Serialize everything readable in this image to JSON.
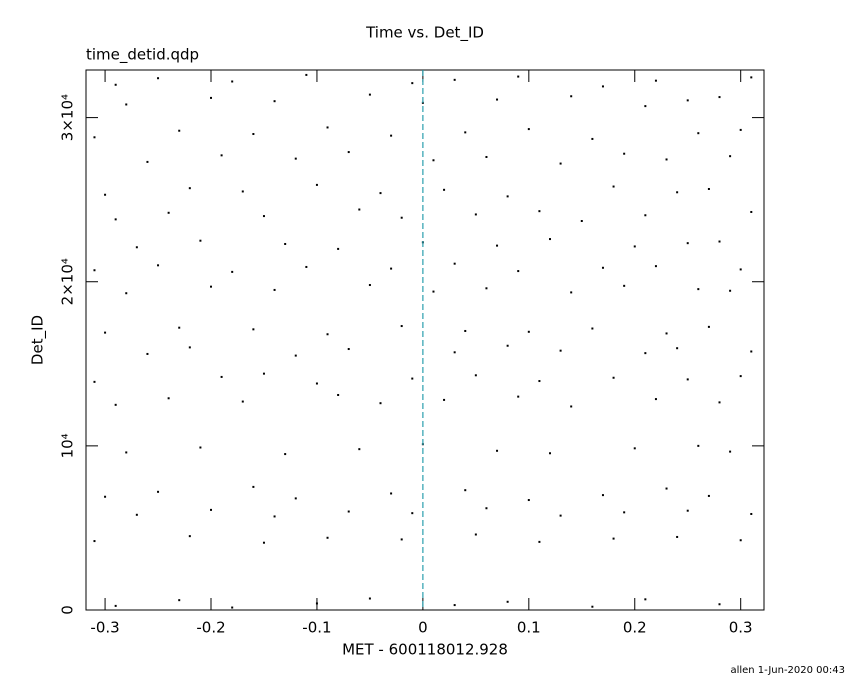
{
  "chart_data": {
    "type": "scatter",
    "title": "Time vs. Det_ID",
    "subtitle": "time_detid.qdp",
    "x_label": "MET - 600118012.928",
    "y_label": "Det_ID",
    "footer": "allen   1-Jun-2020 00:43",
    "xlim": [
      -0.318,
      0.322
    ],
    "ylim": [
      0,
      32900
    ],
    "xticks": [
      -0.3,
      -0.2,
      -0.1,
      0,
      0.1,
      0.2,
      0.3
    ],
    "yticks": [
      0,
      {
        "value": 10000,
        "label": "10⁴"
      },
      {
        "value": 20000,
        "label": "2×10⁴"
      },
      {
        "value": 30000,
        "label": "3×10⁴"
      }
    ],
    "vline_x": 0,
    "vline_color": "#2a9fae",
    "series": [
      {
        "color": "#000000",
        "x": [
          -0.29,
          -0.23,
          -0.18,
          -0.1,
          -0.05,
          0.03,
          0.08,
          0.16,
          0.21,
          0.28,
          -0.31,
          -0.22,
          -0.15,
          -0.09,
          -0.02,
          0.05,
          0.11,
          0.18,
          0.24,
          0.3,
          -0.27,
          -0.2,
          -0.14,
          -0.07,
          -0.01,
          0.06,
          0.13,
          0.19,
          0.25,
          0.31,
          -0.3,
          -0.25,
          -0.16,
          -0.12,
          -0.03,
          0.04,
          0.1,
          0.17,
          0.23,
          0.27,
          -0.28,
          -0.21,
          -0.13,
          -0.06,
          0.0,
          0.07,
          0.12,
          0.2,
          0.26,
          0.29,
          -0.29,
          -0.24,
          -0.17,
          -0.08,
          -0.04,
          0.02,
          0.09,
          0.14,
          0.22,
          0.28,
          -0.31,
          -0.19,
          -0.15,
          -0.1,
          -0.01,
          0.05,
          0.11,
          0.18,
          0.25,
          0.3,
          -0.26,
          -0.22,
          -0.12,
          -0.07,
          0.03,
          0.08,
          0.13,
          0.21,
          0.24,
          0.31,
          -0.3,
          -0.23,
          -0.16,
          -0.09,
          -0.02,
          0.04,
          0.1,
          0.16,
          0.23,
          0.27,
          -0.28,
          -0.2,
          -0.14,
          -0.05,
          0.01,
          0.06,
          0.14,
          0.19,
          0.26,
          0.29,
          -0.31,
          -0.25,
          -0.18,
          -0.11,
          -0.03,
          0.03,
          0.09,
          0.17,
          0.22,
          0.3,
          -0.27,
          -0.21,
          -0.13,
          -0.08,
          0.0,
          0.07,
          0.12,
          0.2,
          0.25,
          0.28,
          -0.29,
          -0.24,
          -0.15,
          -0.06,
          -0.02,
          0.05,
          0.11,
          0.15,
          0.21,
          0.31,
          -0.3,
          -0.22,
          -0.17,
          -0.1,
          -0.04,
          0.02,
          0.08,
          0.18,
          0.24,
          0.27,
          -0.26,
          -0.19,
          -0.12,
          -0.07,
          0.01,
          0.06,
          0.13,
          0.19,
          0.23,
          0.29,
          -0.31,
          -0.23,
          -0.16,
          -0.09,
          -0.03,
          0.04,
          0.1,
          0.16,
          0.26,
          0.3,
          -0.28,
          -0.2,
          -0.14,
          -0.05,
          0.0,
          0.07,
          0.14,
          0.21,
          0.25,
          0.28,
          -0.29,
          -0.25,
          -0.18,
          -0.11,
          -0.01,
          0.03,
          0.09,
          0.17,
          0.22,
          0.31
        ],
        "y": [
          250,
          600,
          150,
          400,
          700,
          300,
          500,
          200,
          650,
          350,
          4200,
          4500,
          4100,
          4400,
          4300,
          4600,
          4150,
          4350,
          4450,
          4250,
          5800,
          6100,
          5700,
          6000,
          5900,
          6200,
          5750,
          5950,
          6050,
          5850,
          6900,
          7200,
          7500,
          6800,
          7100,
          7300,
          6700,
          7000,
          7400,
          6950,
          9600,
          9900,
          9500,
          9800,
          10100,
          9700,
          9550,
          9850,
          10000,
          9650,
          12500,
          12900,
          12700,
          13100,
          12600,
          12800,
          13000,
          12400,
          12850,
          12650,
          13900,
          14200,
          14400,
          13800,
          14100,
          14300,
          13950,
          14150,
          14050,
          14250,
          15600,
          16000,
          15500,
          15900,
          15700,
          16100,
          15800,
          15650,
          15950,
          15750,
          16900,
          17200,
          17100,
          16800,
          17300,
          17000,
          16950,
          17150,
          16850,
          17250,
          19300,
          19700,
          19500,
          19800,
          19400,
          19600,
          19350,
          19750,
          19550,
          19450,
          20700,
          21000,
          20600,
          20900,
          20800,
          21100,
          20650,
          20850,
          20950,
          20750,
          22100,
          22500,
          22300,
          22000,
          22400,
          22200,
          22600,
          22150,
          22350,
          22450,
          23800,
          24200,
          24000,
          24400,
          23900,
          24100,
          24300,
          23700,
          24050,
          24250,
          25300,
          25700,
          25500,
          25900,
          25400,
          25600,
          25200,
          25800,
          25450,
          25650,
          27300,
          27700,
          27500,
          27900,
          27400,
          27600,
          27200,
          27800,
          27450,
          27650,
          28800,
          29200,
          29000,
          29400,
          28900,
          29100,
          29300,
          28700,
          29050,
          29250,
          30800,
          31200,
          31000,
          31400,
          30900,
          31100,
          31300,
          30700,
          31050,
          31250,
          32000,
          32400,
          32200,
          32600,
          32100,
          32300,
          32500,
          31900,
          32250,
          32450
        ]
      }
    ]
  }
}
